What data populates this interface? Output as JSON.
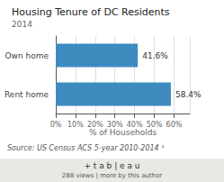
{
  "chart_data": {
    "type": "bar",
    "orientation": "horizontal",
    "title": "Housing Tenure of DC Residents",
    "subtitle": "2014",
    "categories": [
      "Rent home",
      "Own home"
    ],
    "values": [
      58.4,
      41.6
    ],
    "value_labels": [
      "58.4%",
      "41.6%"
    ],
    "data_labels": true,
    "color": "#3d8bbf",
    "xlabel": "% of Households",
    "xlim": [
      0,
      68
    ],
    "xticks": [
      {
        "value": 0,
        "label": "0%"
      },
      {
        "value": 10,
        "label": "10%"
      },
      {
        "value": 20,
        "label": "20%"
      },
      {
        "value": 30,
        "label": "30%"
      },
      {
        "value": 40,
        "label": "40%"
      },
      {
        "value": 50,
        "label": "50%"
      },
      {
        "value": 60,
        "label": "60%"
      }
    ],
    "grid": true,
    "annotations": [
      "Source: US Census ACS 5-year 2010-2014 ¹",
      "+ t a b | e a u",
      "288 views | more by this author"
    ]
  }
}
